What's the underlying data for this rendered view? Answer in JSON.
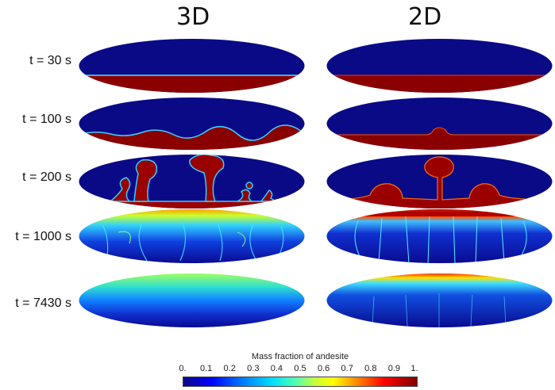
{
  "columns": [
    "3D",
    "2D"
  ],
  "rows": [
    "t = 30 s",
    "t = 100 s",
    "t = 200 s",
    "t = 1000 s",
    "t = 7430 s"
  ],
  "colorbar": {
    "title": "Mass fraction of andesite",
    "ticks": [
      "0.",
      "0.1",
      "0.2",
      "0.3",
      "0.4",
      "0.5",
      "0.6",
      "0.7",
      "0.8",
      "0.9",
      "1."
    ]
  },
  "colors": {
    "low": "#0a0a87",
    "high": "#800000"
  }
}
